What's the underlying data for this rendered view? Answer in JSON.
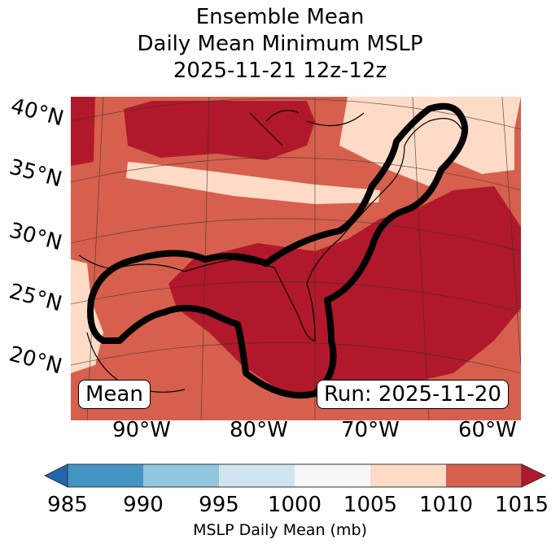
{
  "title": {
    "line1": "Ensemble Mean",
    "line2": "Daily Mean Minimum MSLP",
    "line3": "2025-11-21 12z-12z"
  },
  "map": {
    "lat_labels": [
      "40°N",
      "35°N",
      "30°N",
      "25°N",
      "20°N"
    ],
    "lon_labels": [
      "90°W",
      "80°W",
      "70°W",
      "60°W"
    ],
    "left_box": "Mean",
    "right_box": "Run: 2025-11-20"
  },
  "colorbar": {
    "ticks": [
      "985",
      "990",
      "995",
      "1000",
      "1005",
      "1010",
      "1015"
    ],
    "label": "MSLP Daily Mean (mb)",
    "colors": [
      "#2166ac",
      "#4393c3",
      "#92c5de",
      "#d1e5f0",
      "#f7f7f7",
      "#fddbc7",
      "#d6604d",
      "#b2182b"
    ]
  }
}
